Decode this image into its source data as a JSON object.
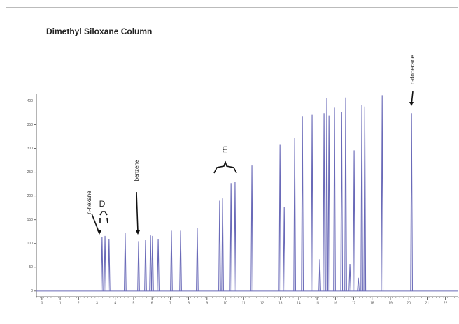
{
  "chart_data": {
    "type": "chromatogram",
    "title": "Dimethyl Siloxane Column",
    "x": [
      3.28,
      3.44,
      3.66,
      4.54,
      5.27,
      5.65,
      5.92,
      6.03,
      6.34,
      7.06,
      7.56,
      8.47,
      9.69,
      9.85,
      10.31,
      10.53,
      11.45,
      12.98,
      13.21,
      13.78,
      14.2,
      14.73,
      15.15,
      15.38,
      15.53,
      15.65,
      15.95,
      16.34,
      16.56,
      16.79,
      17.02,
      17.25,
      17.44,
      17.6,
      18.55,
      20.15
    ],
    "values": [
      113,
      116,
      110,
      123,
      105,
      108,
      117,
      116,
      110,
      127,
      127,
      132,
      190,
      195,
      227,
      229,
      264,
      309,
      177,
      322,
      368,
      372,
      67,
      374,
      406,
      369,
      387,
      377,
      407,
      57,
      296,
      28,
      391,
      388,
      412,
      374
    ],
    "color": "#6a6ab8",
    "xlim": [
      -0.3,
      22.7
    ],
    "ylim": [
      -12,
      414
    ],
    "xticks": [
      0,
      1,
      2,
      3,
      4,
      5,
      6,
      7,
      8,
      9,
      10,
      11,
      12,
      13,
      14,
      15,
      16,
      17,
      18,
      19,
      20,
      21,
      22
    ],
    "yticks": [
      0,
      50,
      100,
      150,
      200,
      250,
      300,
      350,
      400
    ],
    "annotations": [
      "n-hexane",
      "D",
      "benzene",
      "m",
      "n-dodecane"
    ]
  }
}
